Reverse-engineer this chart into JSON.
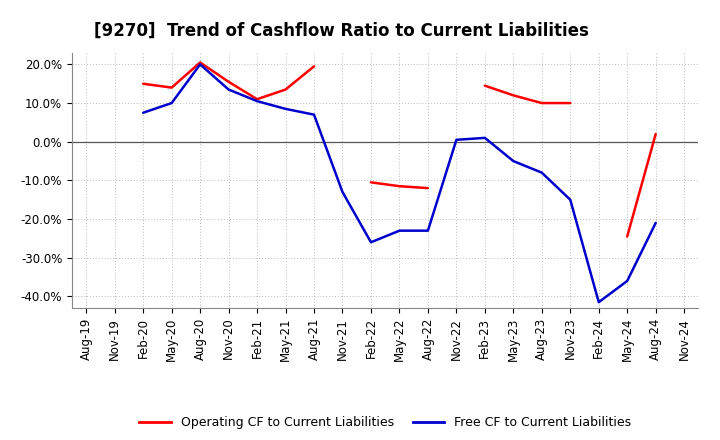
{
  "title": "[9270]  Trend of Cashflow Ratio to Current Liabilities",
  "x_labels": [
    "Aug-19",
    "Nov-19",
    "Feb-20",
    "May-20",
    "Aug-20",
    "Nov-20",
    "Feb-21",
    "May-21",
    "Aug-21",
    "Nov-21",
    "Feb-22",
    "May-22",
    "Aug-22",
    "Nov-22",
    "Feb-23",
    "May-23",
    "Aug-23",
    "Nov-23",
    "Feb-24",
    "May-24",
    "Aug-24",
    "Nov-24"
  ],
  "operating_cf": [
    null,
    null,
    15.0,
    14.0,
    20.5,
    15.5,
    11.0,
    13.5,
    19.5,
    null,
    -10.5,
    -11.5,
    -12.0,
    null,
    14.5,
    12.0,
    10.0,
    10.0,
    null,
    -24.5,
    2.0,
    null
  ],
  "free_cf": [
    null,
    null,
    7.5,
    10.0,
    20.0,
    13.5,
    10.5,
    8.5,
    7.0,
    -13.0,
    -26.0,
    -23.0,
    -23.0,
    0.5,
    1.0,
    -5.0,
    -8.0,
    -15.0,
    -41.5,
    -36.0,
    -21.0,
    null
  ],
  "ylim": [
    -43,
    23
  ],
  "yticks": [
    -40,
    -30,
    -20,
    -10,
    0,
    10,
    20
  ],
  "operating_color": "#FF0000",
  "free_color": "#0000CC",
  "background_color": "#FFFFFF",
  "grid_color": "#BBBBBB",
  "title_fontsize": 12,
  "axis_fontsize": 8.5
}
